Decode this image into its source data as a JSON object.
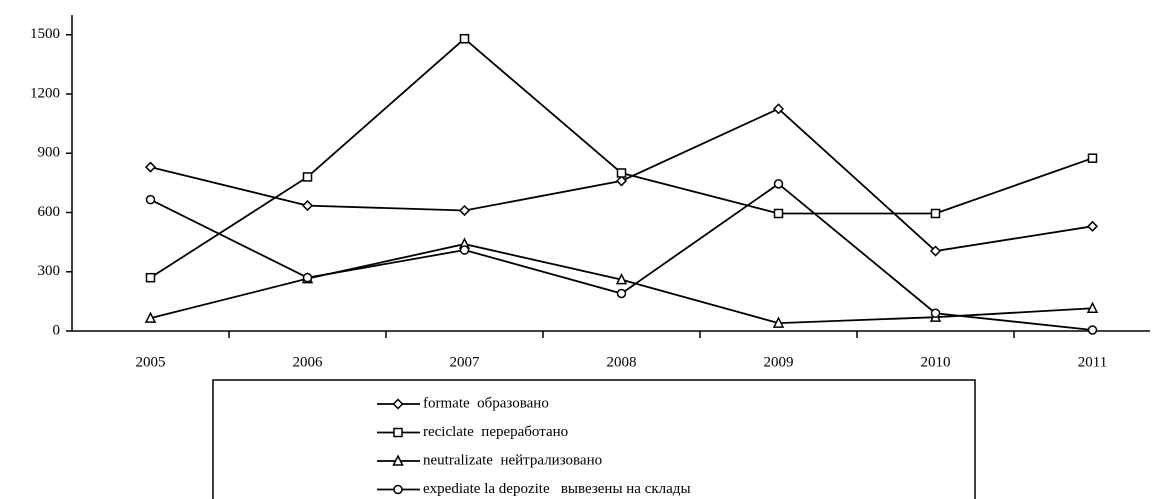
{
  "chart_data": {
    "type": "line",
    "categories": [
      "2005",
      "2006",
      "2007",
      "2008",
      "2009",
      "2010",
      "2011"
    ],
    "series": [
      {
        "name": "formate  образовано",
        "color": "#000000",
        "marker": "diamond",
        "values": [
          830,
          635,
          610,
          760,
          1125,
          405,
          530
        ]
      },
      {
        "name": "reciclate  переработано",
        "color": "#000000",
        "marker": "square",
        "values": [
          270,
          780,
          1480,
          800,
          595,
          595,
          875
        ]
      },
      {
        "name": "neutralizate  нейтрализовано",
        "color": "#000000",
        "marker": "triangle",
        "values": [
          65,
          265,
          440,
          260,
          40,
          70,
          115
        ]
      },
      {
        "name": "expediate la depozite   вывезены на склады",
        "color": "#000000",
        "marker": "circle",
        "values": [
          665,
          270,
          410,
          190,
          745,
          90,
          5
        ]
      }
    ],
    "ylim": [
      0,
      1600
    ],
    "yticks": [
      0,
      300,
      600,
      900,
      1200,
      1500
    ],
    "grid": false,
    "legend": "bottom"
  }
}
